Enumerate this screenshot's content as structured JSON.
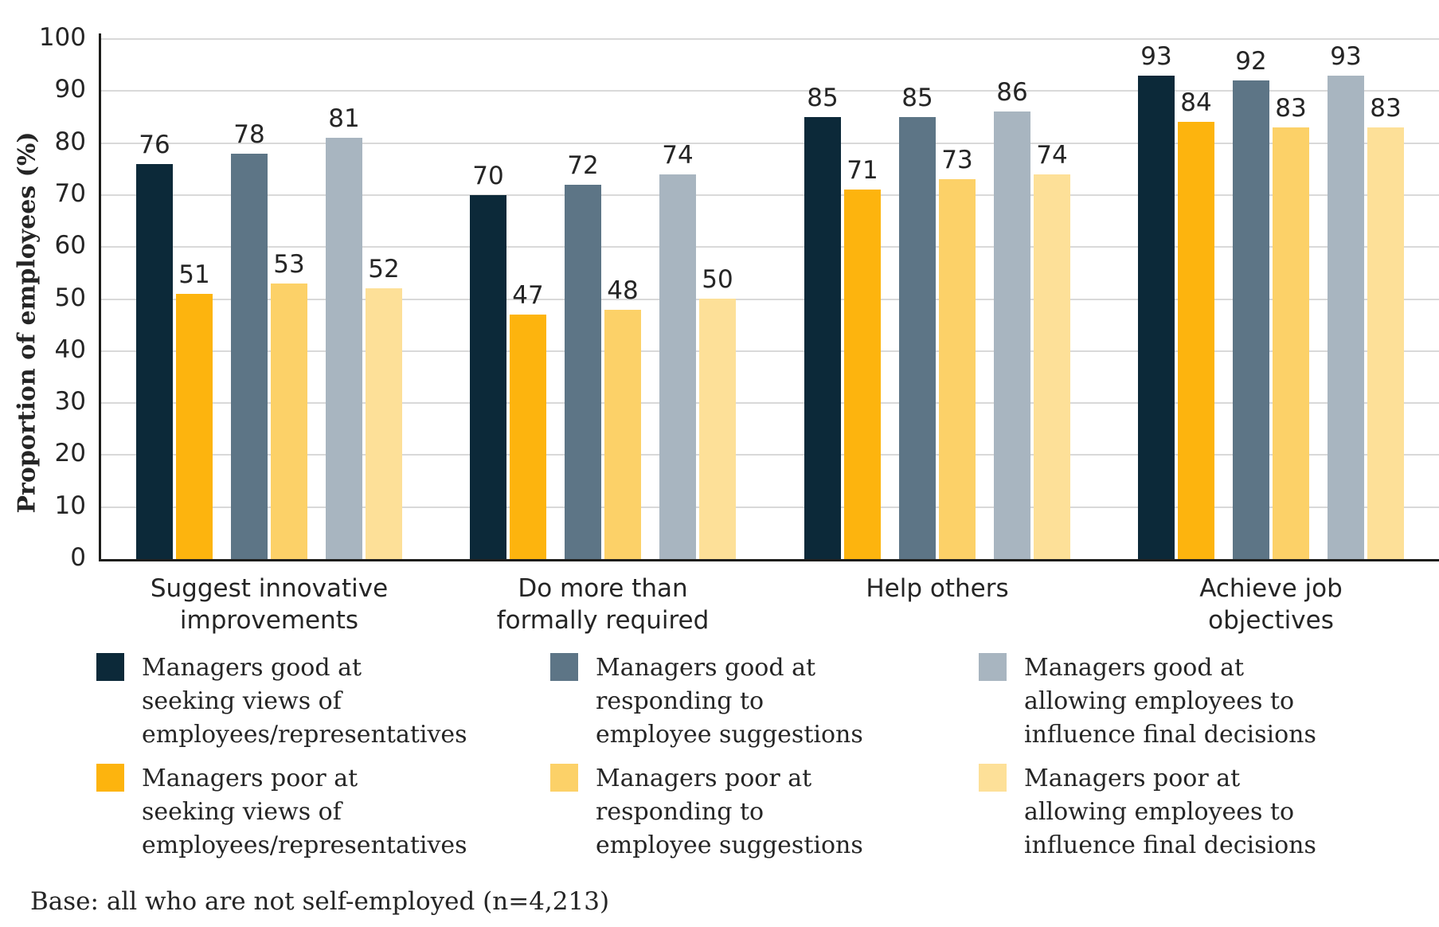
{
  "chart_data": {
    "type": "bar",
    "title": "",
    "xlabel": "",
    "ylabel": "Proportion of employees (%)",
    "ylim": [
      0,
      100
    ],
    "yticks": [
      0,
      10,
      20,
      30,
      40,
      50,
      60,
      70,
      80,
      90,
      100
    ],
    "grid": true,
    "value_labels": true,
    "legend_position": "bottom",
    "categories": [
      "Suggest innovative improvements",
      "Do more than formally required",
      "Help others",
      "Achieve job objectives"
    ],
    "category_lines": [
      [
        "Suggest innovative",
        "improvements"
      ],
      [
        "Do more than",
        "formally required"
      ],
      [
        "Help others"
      ],
      [
        "Achieve job",
        "objectives"
      ]
    ],
    "series": [
      {
        "name": "Managers good at seeking views of employees/representatives",
        "legend_lines": [
          "Managers good at",
          "seeking views of",
          "employees/representatives"
        ],
        "color": "#0c2939",
        "values": [
          76,
          70,
          85,
          93
        ]
      },
      {
        "name": "Managers poor at seeking views of employees/representatives",
        "legend_lines": [
          "Managers poor at",
          "seeking views of",
          "employees/representatives"
        ],
        "color": "#fdb40e",
        "values": [
          51,
          47,
          71,
          84
        ]
      },
      {
        "name": "Managers good at responding to employee suggestions",
        "legend_lines": [
          "Managers good at",
          "responding to",
          "employee suggestions"
        ],
        "color": "#5d7586",
        "values": [
          78,
          72,
          85,
          92
        ]
      },
      {
        "name": "Managers poor at responding to employee suggestions",
        "legend_lines": [
          "Managers poor at",
          "responding to",
          "employee suggestions"
        ],
        "color": "#fcd168",
        "values": [
          53,
          48,
          73,
          83
        ]
      },
      {
        "name": "Managers good at allowing employees to influence final decisions",
        "legend_lines": [
          "Managers good at",
          "allowing employees to",
          "influence final decisions"
        ],
        "color": "#a8b5c0",
        "values": [
          81,
          74,
          86,
          93
        ]
      },
      {
        "name": "Managers poor at allowing employees to influence final decisions",
        "legend_lines": [
          "Managers poor at",
          "allowing employees to",
          "influence final decisions"
        ],
        "color": "#fde098",
        "values": [
          52,
          50,
          74,
          83
        ]
      }
    ]
  },
  "base_note": "Base: all who are not self-employed (n=4,213)",
  "colors": {
    "grid": "#d9d9d9",
    "axis": "#1d1d1b",
    "text": "#252525"
  }
}
